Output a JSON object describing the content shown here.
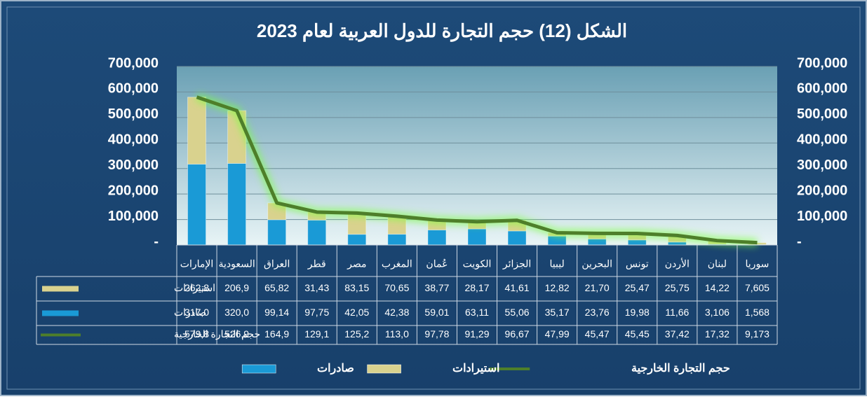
{
  "chart_data": {
    "type": "bar",
    "stacked": true,
    "title": "الشكل (12) حجم التجارة للدول العربية لعام 2023",
    "categories": [
      "الإمارات",
      "السعودية",
      "العراق",
      "قطر",
      "مصر",
      "المغرب",
      "عُمان",
      "الكويت",
      "الجزائر",
      "ليبيا",
      "البحرين",
      "تونس",
      "الأردن",
      "لبنان",
      "سوريا"
    ],
    "series": [
      {
        "name": "صادرات",
        "color": "#1a9ad6",
        "values": [
          317000,
          320000,
          99140,
          97750,
          42050,
          42380,
          59010,
          63110,
          55060,
          35170,
          23760,
          19980,
          11660,
          3106,
          1568
        ],
        "value_labels": [
          "317,0",
          "320,0",
          "99,14",
          "97,75",
          "42,05",
          "42,38",
          "59,01",
          "63,11",
          "55,06",
          "35,17",
          "23,76",
          "19,98",
          "11,66",
          "3,106",
          "1,568"
        ]
      },
      {
        "name": "استيرادات",
        "color": "#d9d28e",
        "values": [
          262800,
          206900,
          65820,
          31430,
          83150,
          70650,
          38770,
          28170,
          41610,
          12820,
          21700,
          25470,
          25750,
          14220,
          7605
        ],
        "value_labels": [
          "262,8",
          "206,9",
          "65,82",
          "31,43",
          "83,15",
          "70,65",
          "38,77",
          "28,17",
          "41,61",
          "12,82",
          "21,70",
          "25,47",
          "25,75",
          "14,22",
          "7,605"
        ]
      },
      {
        "name": "حجم التجارة الخارجية",
        "type": "line",
        "axis": "y2",
        "color": "#4e7f2a",
        "values": [
          579800,
          526900,
          164900,
          129100,
          125200,
          113000,
          97780,
          91290,
          96670,
          47990,
          45470,
          45450,
          37420,
          17320,
          9173
        ],
        "value_labels": [
          "579,8",
          "526,9",
          "164,9",
          "129,1",
          "125,2",
          "113,0",
          "97,78",
          "91,29",
          "96,67",
          "47,99",
          "45,47",
          "45,45",
          "37,42",
          "17,32",
          "9,173"
        ]
      }
    ],
    "ylim": [
      0,
      700000
    ],
    "yticks": [
      {
        "value": 0,
        "label": "-"
      },
      {
        "value": 100000,
        "label": "100,000"
      },
      {
        "value": 200000,
        "label": "200,000"
      },
      {
        "value": 300000,
        "label": "300,000"
      },
      {
        "value": 400000,
        "label": "400,000"
      },
      {
        "value": 500000,
        "label": "500,000"
      },
      {
        "value": 600000,
        "label": "600,000"
      },
      {
        "value": 700000,
        "label": "700,000"
      }
    ],
    "y2lim": [
      0,
      700000
    ],
    "y2ticks": [
      {
        "value": 0,
        "label": "-"
      },
      {
        "value": 100000,
        "label": "100,000"
      },
      {
        "value": 200000,
        "label": "200,000"
      },
      {
        "value": 300000,
        "label": "300,000"
      },
      {
        "value": 400000,
        "label": "400,000"
      },
      {
        "value": 500000,
        "label": "500,000"
      },
      {
        "value": 600000,
        "label": "600,000"
      },
      {
        "value": 700000,
        "label": "700,000"
      }
    ],
    "grid": true,
    "legend": "bottom",
    "data_table": true
  }
}
